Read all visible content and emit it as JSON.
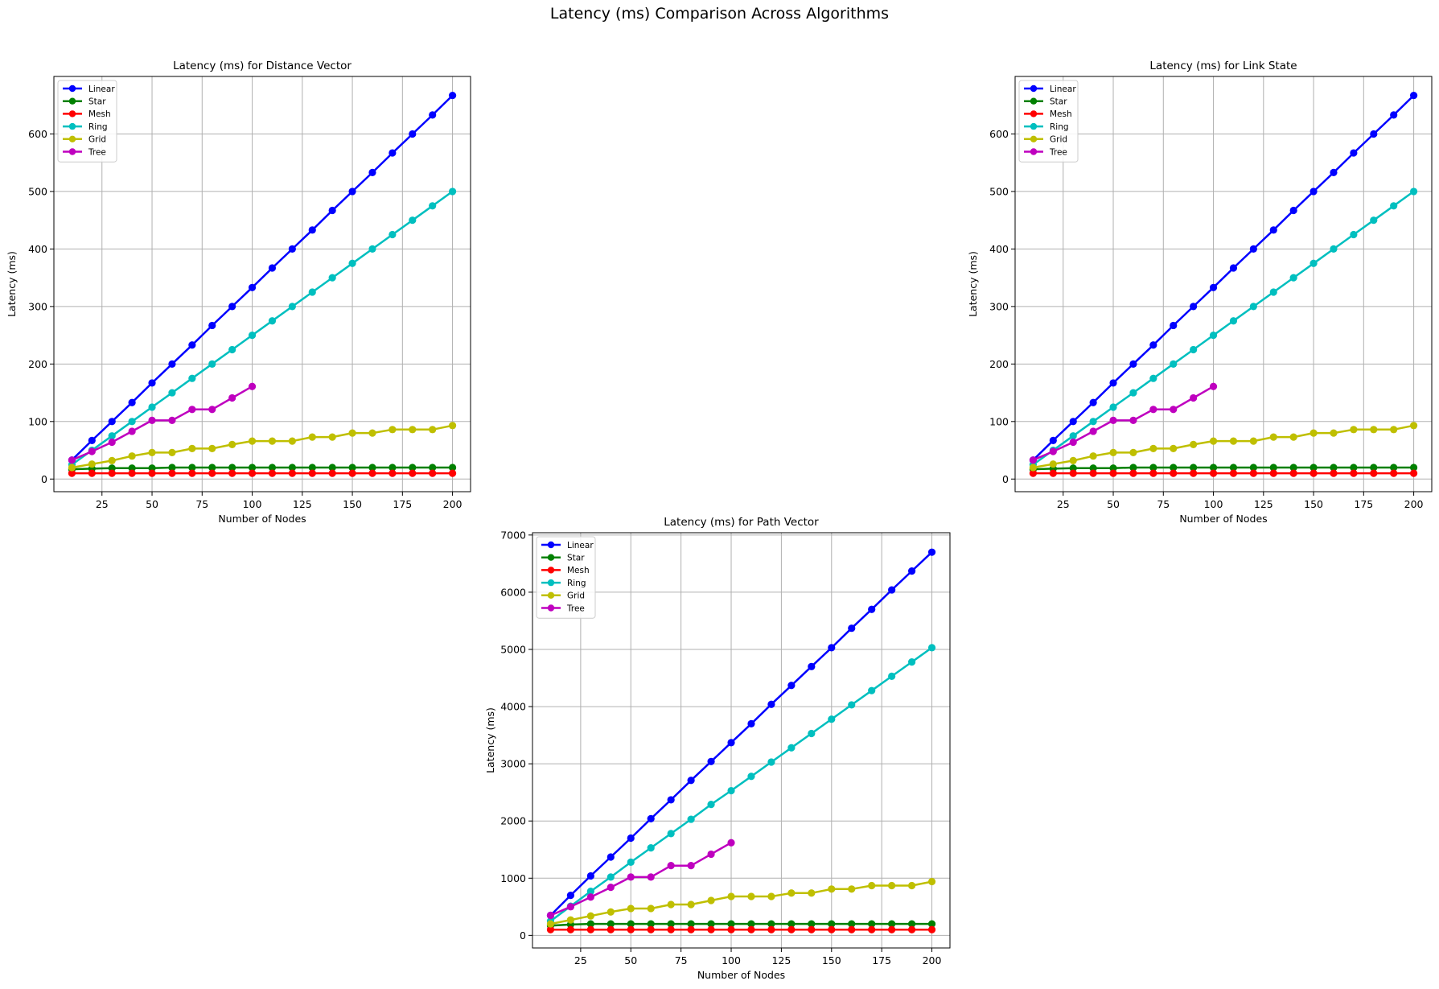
{
  "figure": {
    "title": "Latency (ms) Comparison Across Algorithms"
  },
  "series_colors": {
    "Linear": "#0000ff",
    "Star": "#008000",
    "Mesh": "#ff0000",
    "Ring": "#00bfbf",
    "Grid": "#bfbf00",
    "Tree": "#bf00bf"
  },
  "chart_data": [
    {
      "type": "line",
      "title": "Latency (ms) for Distance Vector",
      "xlabel": "Number of Nodes",
      "ylabel": "Latency (ms)",
      "xlim": [
        1,
        209
      ],
      "ylim": [
        -22,
        700
      ],
      "xticks": [
        25,
        50,
        75,
        100,
        125,
        150,
        175,
        200
      ],
      "yticks": [
        0,
        100,
        200,
        300,
        400,
        500,
        600
      ],
      "grid": true,
      "legend": "top-left",
      "x": [
        10,
        20,
        30,
        40,
        50,
        60,
        70,
        80,
        90,
        100,
        110,
        120,
        130,
        140,
        150,
        160,
        170,
        180,
        190,
        200
      ],
      "series": [
        {
          "name": "Linear",
          "values": [
            33,
            67,
            100,
            133,
            167,
            200,
            233,
            267,
            300,
            333,
            367,
            400,
            433,
            467,
            500,
            533,
            567,
            600,
            633,
            667
          ]
        },
        {
          "name": "Star",
          "values": [
            17,
            18,
            19,
            19,
            19,
            20,
            20,
            20,
            20,
            20,
            20,
            20,
            20,
            20,
            20,
            20,
            20,
            20,
            20,
            20
          ]
        },
        {
          "name": "Mesh",
          "values": [
            10,
            10,
            10,
            10,
            10,
            10,
            10,
            10,
            10,
            10,
            10,
            10,
            10,
            10,
            10,
            10,
            10,
            10,
            10,
            10
          ]
        },
        {
          "name": "Ring",
          "values": [
            25,
            50,
            75,
            100,
            125,
            150,
            175,
            200,
            225,
            250,
            275,
            300,
            325,
            350,
            375,
            400,
            425,
            450,
            475,
            500
          ]
        },
        {
          "name": "Grid",
          "values": [
            20,
            26,
            32,
            40,
            46,
            46,
            53,
            53,
            60,
            66,
            66,
            66,
            73,
            73,
            80,
            80,
            86,
            86,
            86,
            93
          ]
        },
        {
          "name": "Tree",
          "x": [
            10,
            20,
            30,
            40,
            50,
            60,
            70,
            80,
            90,
            100
          ],
          "values": [
            33,
            48,
            64,
            83,
            102,
            102,
            121,
            121,
            141,
            161
          ]
        }
      ]
    },
    {
      "type": "line",
      "title": "Latency (ms) for Link State",
      "xlabel": "Number of Nodes",
      "ylabel": "Latency (ms)",
      "xlim": [
        1,
        209
      ],
      "ylim": [
        -22,
        700
      ],
      "xticks": [
        25,
        50,
        75,
        100,
        125,
        150,
        175,
        200
      ],
      "yticks": [
        0,
        100,
        200,
        300,
        400,
        500,
        600
      ],
      "grid": true,
      "legend": "top-left",
      "x": [
        10,
        20,
        30,
        40,
        50,
        60,
        70,
        80,
        90,
        100,
        110,
        120,
        130,
        140,
        150,
        160,
        170,
        180,
        190,
        200
      ],
      "series": [
        {
          "name": "Linear",
          "values": [
            33,
            67,
            100,
            133,
            167,
            200,
            233,
            267,
            300,
            333,
            367,
            400,
            433,
            467,
            500,
            533,
            567,
            600,
            633,
            667
          ]
        },
        {
          "name": "Star",
          "values": [
            17,
            18,
            19,
            19,
            19,
            20,
            20,
            20,
            20,
            20,
            20,
            20,
            20,
            20,
            20,
            20,
            20,
            20,
            20,
            20
          ]
        },
        {
          "name": "Mesh",
          "values": [
            10,
            10,
            10,
            10,
            10,
            10,
            10,
            10,
            10,
            10,
            10,
            10,
            10,
            10,
            10,
            10,
            10,
            10,
            10,
            10
          ]
        },
        {
          "name": "Ring",
          "values": [
            25,
            50,
            75,
            100,
            125,
            150,
            175,
            200,
            225,
            250,
            275,
            300,
            325,
            350,
            375,
            400,
            425,
            450,
            475,
            500
          ]
        },
        {
          "name": "Grid",
          "values": [
            20,
            26,
            32,
            40,
            46,
            46,
            53,
            53,
            60,
            66,
            66,
            66,
            73,
            73,
            80,
            80,
            86,
            86,
            86,
            93
          ]
        },
        {
          "name": "Tree",
          "x": [
            10,
            20,
            30,
            40,
            50,
            60,
            70,
            80,
            90,
            100
          ],
          "values": [
            33,
            48,
            64,
            83,
            102,
            102,
            121,
            121,
            141,
            161
          ]
        }
      ]
    },
    {
      "type": "line",
      "title": "Latency (ms) for Path Vector",
      "xlabel": "Number of Nodes",
      "ylabel": "Latency (ms)",
      "xlim": [
        1,
        209
      ],
      "ylim": [
        -220,
        7040
      ],
      "xticks": [
        25,
        50,
        75,
        100,
        125,
        150,
        175,
        200
      ],
      "yticks": [
        0,
        1000,
        2000,
        3000,
        4000,
        5000,
        6000,
        7000
      ],
      "grid": true,
      "legend": "top-left",
      "x": [
        10,
        20,
        30,
        40,
        50,
        60,
        70,
        80,
        90,
        100,
        110,
        120,
        130,
        140,
        150,
        160,
        170,
        180,
        190,
        200
      ],
      "series": [
        {
          "name": "Linear",
          "values": [
            350,
            700,
            1040,
            1370,
            1700,
            2040,
            2370,
            2710,
            3040,
            3370,
            3700,
            4040,
            4370,
            4700,
            5030,
            5370,
            5700,
            6040,
            6370,
            6700
          ]
        },
        {
          "name": "Star",
          "values": [
            170,
            190,
            200,
            200,
            200,
            200,
            200,
            200,
            200,
            200,
            200,
            200,
            200,
            200,
            200,
            200,
            200,
            200,
            200,
            200
          ]
        },
        {
          "name": "Mesh",
          "values": [
            100,
            100,
            100,
            100,
            100,
            100,
            100,
            100,
            100,
            100,
            100,
            100,
            100,
            100,
            100,
            100,
            100,
            100,
            100,
            100
          ]
        },
        {
          "name": "Ring",
          "values": [
            250,
            510,
            770,
            1020,
            1280,
            1530,
            1780,
            2030,
            2290,
            2530,
            2780,
            3030,
            3280,
            3530,
            3780,
            4030,
            4280,
            4530,
            4780,
            5030
          ]
        },
        {
          "name": "Grid",
          "values": [
            200,
            270,
            340,
            410,
            470,
            470,
            540,
            540,
            610,
            680,
            680,
            680,
            740,
            740,
            810,
            810,
            870,
            870,
            870,
            940
          ]
        },
        {
          "name": "Tree",
          "x": [
            10,
            20,
            30,
            40,
            50,
            60,
            70,
            80,
            90,
            100
          ],
          "values": [
            350,
            500,
            670,
            840,
            1020,
            1020,
            1220,
            1220,
            1420,
            1620
          ]
        }
      ]
    }
  ]
}
